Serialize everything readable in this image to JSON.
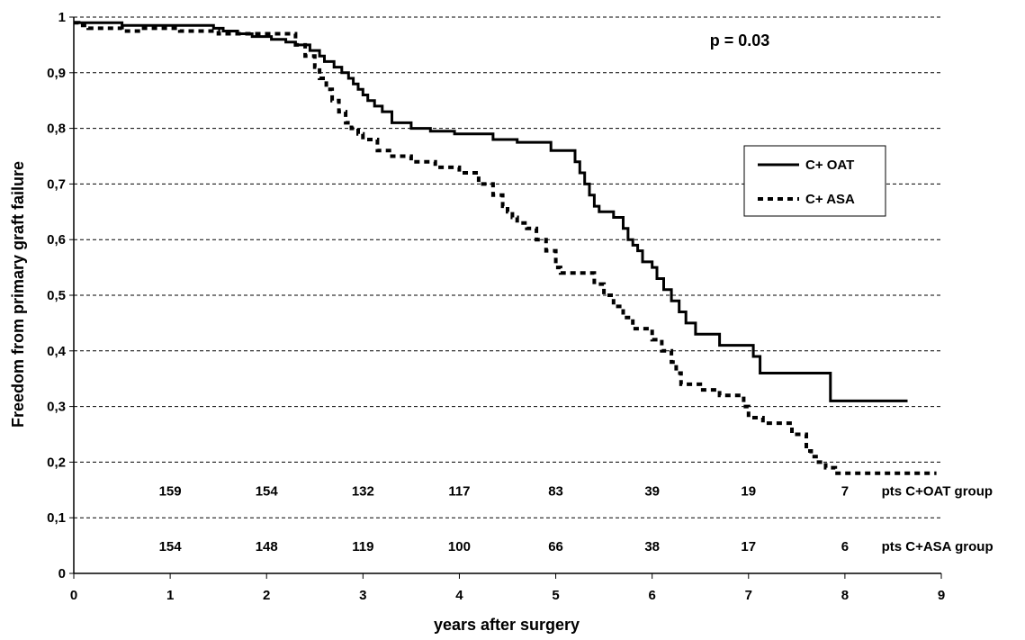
{
  "chart_data": {
    "type": "line",
    "title": "",
    "xlabel": "years after surgery",
    "ylabel": "Freedom from primary graft failure",
    "xlim": [
      0,
      9
    ],
    "ylim": [
      0,
      1
    ],
    "x_ticks": [
      "0",
      "1",
      "2",
      "3",
      "4",
      "5",
      "6",
      "7",
      "8",
      "9"
    ],
    "y_ticks": [
      "0",
      "0,1",
      "0,2",
      "0,3",
      "0,4",
      "0,5",
      "0,6",
      "0,7",
      "0,8",
      "0,9",
      "1"
    ],
    "grid": "horizontal dashed",
    "legend_position": "right",
    "annotation": "p = 0.03",
    "series": [
      {
        "name": "C+ OAT",
        "style": "solid",
        "color": "#000000",
        "x": [
          0,
          0.1,
          0.5,
          1.45,
          1.55,
          1.7,
          1.85,
          2.05,
          2.2,
          2.3,
          2.45,
          2.55,
          2.6,
          2.7,
          2.78,
          2.85,
          2.9,
          2.95,
          3.0,
          3.05,
          3.12,
          3.2,
          3.3,
          3.5,
          3.7,
          3.95,
          4.35,
          4.6,
          4.95,
          5.2,
          5.25,
          5.3,
          5.35,
          5.4,
          5.45,
          5.6,
          5.7,
          5.75,
          5.8,
          5.85,
          5.9,
          6.0,
          6.05,
          6.12,
          6.2,
          6.28,
          6.35,
          6.45,
          6.7,
          7.05,
          7.12,
          7.2,
          7.85,
          8.65
        ],
        "y": [
          0.99,
          0.99,
          0.985,
          0.98,
          0.975,
          0.97,
          0.965,
          0.96,
          0.955,
          0.95,
          0.94,
          0.93,
          0.92,
          0.91,
          0.9,
          0.89,
          0.88,
          0.87,
          0.86,
          0.85,
          0.84,
          0.83,
          0.81,
          0.8,
          0.795,
          0.79,
          0.78,
          0.775,
          0.76,
          0.74,
          0.72,
          0.7,
          0.68,
          0.66,
          0.65,
          0.64,
          0.62,
          0.6,
          0.59,
          0.58,
          0.56,
          0.55,
          0.53,
          0.51,
          0.49,
          0.47,
          0.45,
          0.43,
          0.41,
          0.39,
          0.36,
          0.36,
          0.31,
          0.31
        ]
      },
      {
        "name": "C+ ASA",
        "style": "dashed",
        "color": "#000000",
        "x": [
          0,
          0.05,
          0.15,
          0.5,
          0.7,
          1.1,
          1.5,
          2.3,
          2.4,
          2.5,
          2.55,
          2.62,
          2.68,
          2.75,
          2.82,
          2.88,
          2.95,
          3.0,
          3.15,
          3.3,
          3.5,
          3.75,
          4.0,
          4.2,
          4.35,
          4.45,
          4.5,
          4.55,
          4.6,
          4.7,
          4.8,
          4.9,
          5.0,
          5.05,
          5.4,
          5.5,
          5.6,
          5.7,
          5.8,
          6.0,
          6.1,
          6.2,
          6.25,
          6.3,
          6.5,
          6.7,
          6.95,
          7.0,
          7.05,
          7.15,
          7.45,
          7.6,
          7.65,
          7.7,
          7.8,
          7.9,
          8.95
        ],
        "y": [
          0.99,
          0.985,
          0.98,
          0.975,
          0.98,
          0.975,
          0.97,
          0.95,
          0.93,
          0.91,
          0.89,
          0.87,
          0.85,
          0.83,
          0.81,
          0.8,
          0.79,
          0.78,
          0.76,
          0.75,
          0.74,
          0.73,
          0.72,
          0.7,
          0.68,
          0.66,
          0.65,
          0.64,
          0.63,
          0.62,
          0.6,
          0.58,
          0.55,
          0.54,
          0.52,
          0.5,
          0.48,
          0.46,
          0.44,
          0.42,
          0.4,
          0.38,
          0.36,
          0.34,
          0.33,
          0.32,
          0.3,
          0.28,
          0.28,
          0.27,
          0.25,
          0.22,
          0.21,
          0.2,
          0.19,
          0.18,
          0.18
        ]
      }
    ],
    "risk_table": [
      {
        "label": "pts C+OAT group",
        "x": [
          1,
          2,
          3,
          4,
          5,
          6,
          7,
          8
        ],
        "values": [
          "159",
          "154",
          "132",
          "117",
          "83",
          "39",
          "19",
          "7"
        ]
      },
      {
        "label": "pts C+ASA group",
        "x": [
          1,
          2,
          3,
          4,
          5,
          6,
          7,
          8
        ],
        "values": [
          "154",
          "148",
          "119",
          "100",
          "66",
          "38",
          "17",
          "6"
        ]
      }
    ]
  }
}
